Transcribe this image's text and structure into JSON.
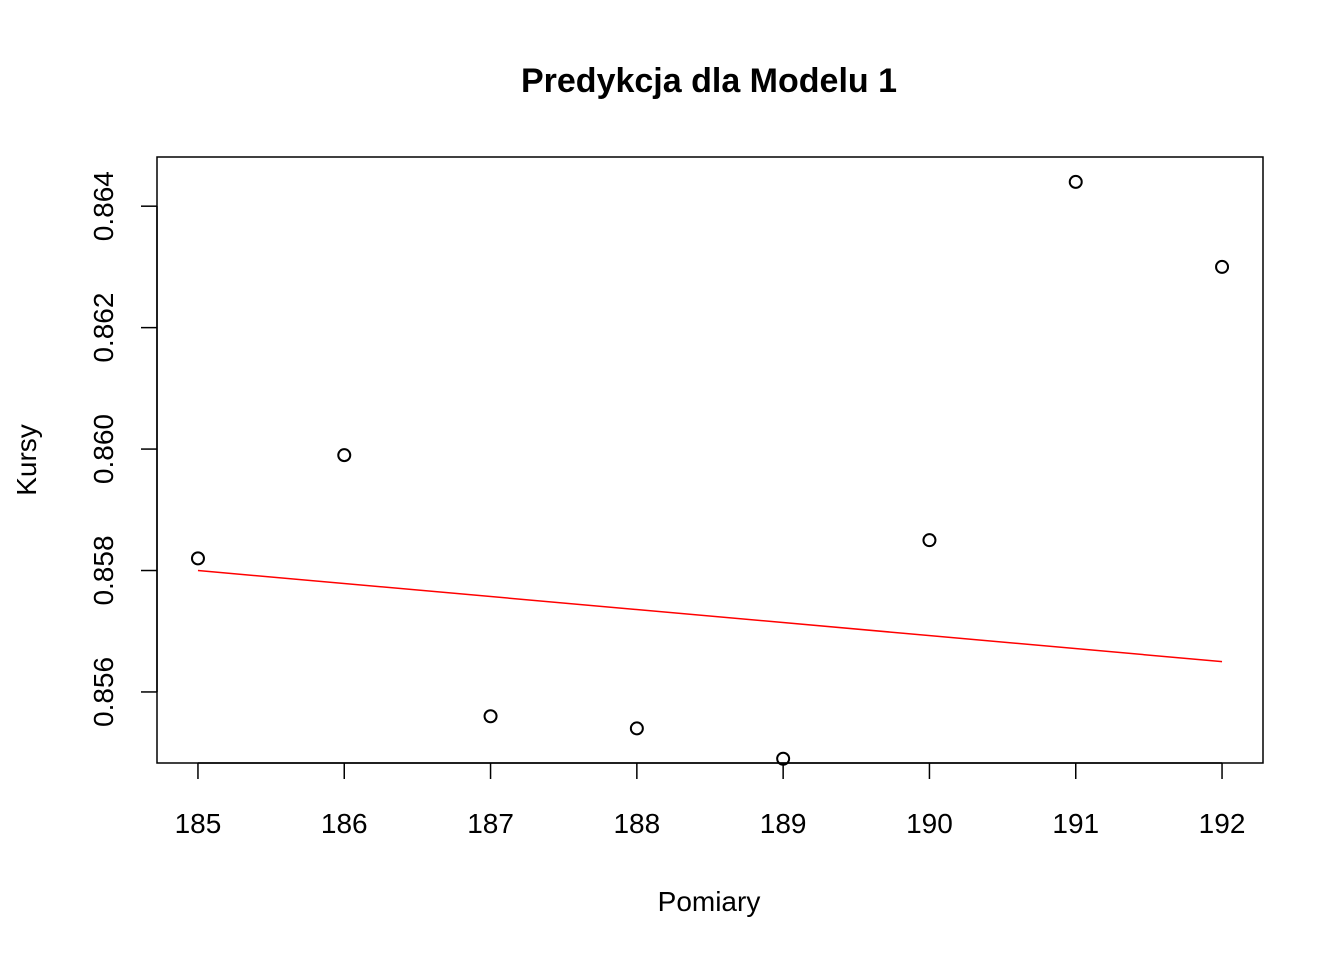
{
  "chart_data": {
    "type": "scatter",
    "title": "Predykcja dla Modelu 1",
    "xlabel": "Pomiary",
    "ylabel": "Kursy",
    "x_ticks": [
      185,
      186,
      187,
      188,
      189,
      190,
      191,
      192
    ],
    "x_tick_labels": [
      "185",
      "186",
      "187",
      "188",
      "189",
      "190",
      "191",
      "192"
    ],
    "y_ticks": [
      0.856,
      0.858,
      0.86,
      0.862,
      0.864
    ],
    "y_tick_labels": [
      "0.856",
      "0.858",
      "0.860",
      "0.862",
      "0.864"
    ],
    "xlim": [
      184.72,
      192.28
    ],
    "ylim": [
      0.85483,
      0.86481
    ],
    "grid": false,
    "series": [
      {
        "type": "scatter",
        "marker": "open-circle",
        "color": "#000000",
        "x": [
          185,
          186,
          187,
          188,
          189,
          190,
          191,
          192
        ],
        "y": [
          0.8582,
          0.8599,
          0.8556,
          0.8554,
          0.8549,
          0.8585,
          0.8644,
          0.863
        ]
      },
      {
        "type": "line",
        "color": "#ff0000",
        "x": [
          185,
          192
        ],
        "y": [
          0.858,
          0.8565
        ]
      }
    ]
  }
}
